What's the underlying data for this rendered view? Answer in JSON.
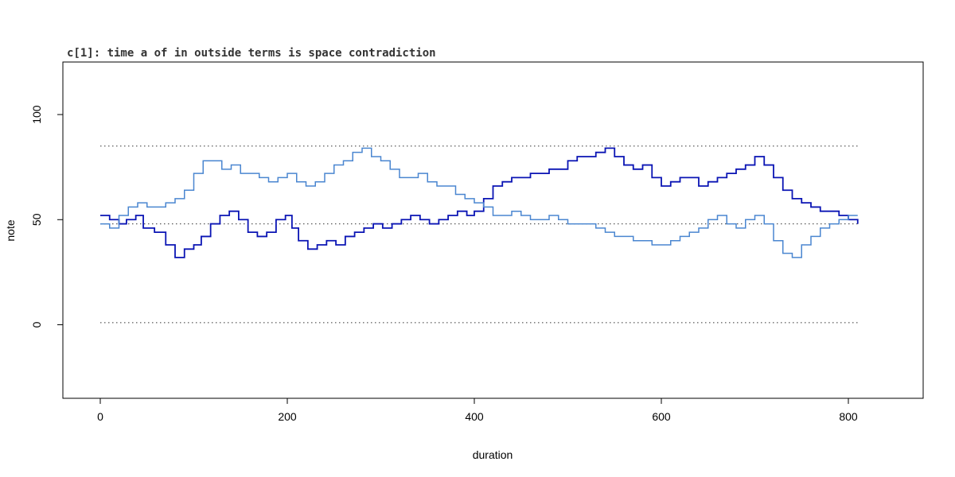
{
  "chart_data": {
    "type": "line",
    "title": "c[1]: time a of in outside terms is space contradiction",
    "xlabel": "duration",
    "ylabel": "note",
    "xlim": [
      -40,
      880
    ],
    "ylim": [
      -35,
      125
    ],
    "xticks": [
      "0",
      "200",
      "400",
      "600",
      "800"
    ],
    "yticks": [
      "0",
      "50",
      "100"
    ],
    "reference_lines": [
      1,
      48,
      85
    ],
    "colors": {
      "series_dark": "#0a14b4",
      "series_light": "#4a86d0",
      "reference": "#333333"
    },
    "series": [
      {
        "color": "#0a14b4",
        "points": [
          [
            0,
            52
          ],
          [
            10,
            50
          ],
          [
            20,
            48
          ],
          [
            28,
            50
          ],
          [
            38,
            52
          ],
          [
            46,
            46
          ],
          [
            58,
            44
          ],
          [
            70,
            38
          ],
          [
            80,
            32
          ],
          [
            90,
            36
          ],
          [
            100,
            38
          ],
          [
            108,
            42
          ],
          [
            118,
            48
          ],
          [
            128,
            52
          ],
          [
            138,
            54
          ],
          [
            148,
            50
          ],
          [
            158,
            44
          ],
          [
            168,
            42
          ],
          [
            178,
            44
          ],
          [
            188,
            50
          ],
          [
            198,
            52
          ],
          [
            205,
            46
          ],
          [
            212,
            40
          ],
          [
            222,
            36
          ],
          [
            232,
            38
          ],
          [
            242,
            40
          ],
          [
            252,
            38
          ],
          [
            262,
            42
          ],
          [
            272,
            44
          ],
          [
            282,
            46
          ],
          [
            292,
            48
          ],
          [
            302,
            46
          ],
          [
            312,
            48
          ],
          [
            322,
            50
          ],
          [
            332,
            52
          ],
          [
            342,
            50
          ],
          [
            352,
            48
          ],
          [
            362,
            50
          ],
          [
            372,
            52
          ],
          [
            382,
            54
          ],
          [
            392,
            52
          ],
          [
            400,
            54
          ],
          [
            410,
            60
          ],
          [
            420,
            66
          ],
          [
            430,
            68
          ],
          [
            440,
            70
          ],
          [
            450,
            70
          ],
          [
            460,
            72
          ],
          [
            470,
            72
          ],
          [
            480,
            74
          ],
          [
            490,
            74
          ],
          [
            500,
            78
          ],
          [
            510,
            80
          ],
          [
            520,
            80
          ],
          [
            530,
            82
          ],
          [
            540,
            84
          ],
          [
            550,
            80
          ],
          [
            560,
            76
          ],
          [
            570,
            74
          ],
          [
            580,
            76
          ],
          [
            590,
            70
          ],
          [
            600,
            66
          ],
          [
            610,
            68
          ],
          [
            620,
            70
          ],
          [
            630,
            70
          ],
          [
            640,
            66
          ],
          [
            650,
            68
          ],
          [
            660,
            70
          ],
          [
            670,
            72
          ],
          [
            680,
            74
          ],
          [
            690,
            76
          ],
          [
            700,
            80
          ],
          [
            710,
            76
          ],
          [
            720,
            70
          ],
          [
            730,
            64
          ],
          [
            740,
            60
          ],
          [
            750,
            58
          ],
          [
            760,
            56
          ],
          [
            770,
            54
          ],
          [
            780,
            54
          ],
          [
            790,
            52
          ],
          [
            800,
            50
          ],
          [
            810,
            48
          ]
        ]
      },
      {
        "color": "#4a86d0",
        "points": [
          [
            0,
            48
          ],
          [
            10,
            46
          ],
          [
            20,
            52
          ],
          [
            30,
            56
          ],
          [
            40,
            58
          ],
          [
            50,
            56
          ],
          [
            60,
            56
          ],
          [
            70,
            58
          ],
          [
            80,
            60
          ],
          [
            90,
            64
          ],
          [
            100,
            72
          ],
          [
            110,
            78
          ],
          [
            120,
            78
          ],
          [
            130,
            74
          ],
          [
            140,
            76
          ],
          [
            150,
            72
          ],
          [
            160,
            72
          ],
          [
            170,
            70
          ],
          [
            180,
            68
          ],
          [
            190,
            70
          ],
          [
            200,
            72
          ],
          [
            210,
            68
          ],
          [
            220,
            66
          ],
          [
            230,
            68
          ],
          [
            240,
            72
          ],
          [
            250,
            76
          ],
          [
            260,
            78
          ],
          [
            270,
            82
          ],
          [
            280,
            84
          ],
          [
            290,
            80
          ],
          [
            300,
            78
          ],
          [
            310,
            74
          ],
          [
            320,
            70
          ],
          [
            330,
            70
          ],
          [
            340,
            72
          ],
          [
            350,
            68
          ],
          [
            360,
            66
          ],
          [
            370,
            66
          ],
          [
            380,
            62
          ],
          [
            390,
            60
          ],
          [
            400,
            58
          ],
          [
            410,
            56
          ],
          [
            420,
            52
          ],
          [
            430,
            52
          ],
          [
            440,
            54
          ],
          [
            450,
            52
          ],
          [
            460,
            50
          ],
          [
            470,
            50
          ],
          [
            480,
            52
          ],
          [
            490,
            50
          ],
          [
            500,
            48
          ],
          [
            510,
            48
          ],
          [
            520,
            48
          ],
          [
            530,
            46
          ],
          [
            540,
            44
          ],
          [
            550,
            42
          ],
          [
            560,
            42
          ],
          [
            570,
            40
          ],
          [
            580,
            40
          ],
          [
            590,
            38
          ],
          [
            600,
            38
          ],
          [
            610,
            40
          ],
          [
            620,
            42
          ],
          [
            630,
            44
          ],
          [
            640,
            46
          ],
          [
            650,
            50
          ],
          [
            660,
            52
          ],
          [
            670,
            48
          ],
          [
            680,
            46
          ],
          [
            690,
            50
          ],
          [
            700,
            52
          ],
          [
            710,
            48
          ],
          [
            720,
            40
          ],
          [
            730,
            34
          ],
          [
            740,
            32
          ],
          [
            750,
            38
          ],
          [
            760,
            42
          ],
          [
            770,
            46
          ],
          [
            780,
            48
          ],
          [
            790,
            50
          ],
          [
            800,
            52
          ],
          [
            810,
            52
          ]
        ]
      }
    ]
  }
}
